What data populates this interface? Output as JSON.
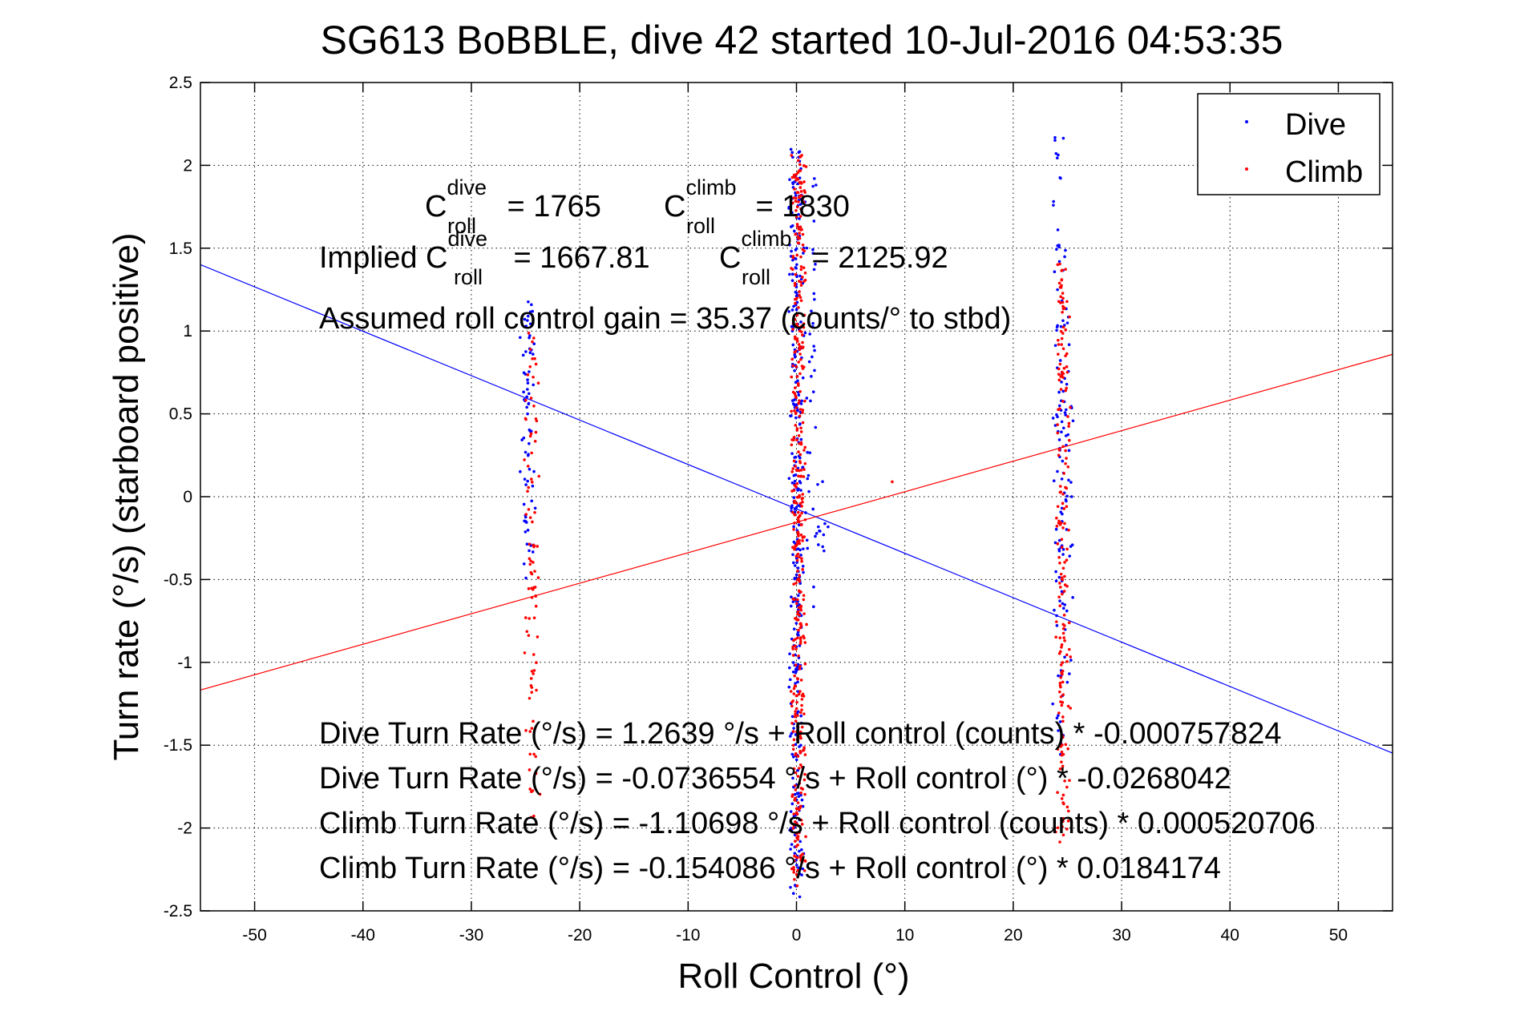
{
  "chart_data": {
    "type": "scatter",
    "title": "SG613 BoBBLE, dive 42 started 10-Jul-2016 04:53:35",
    "xlabel": "Roll Control (°)",
    "ylabel": "Turn rate (°/s)  (starboard positive)",
    "xlim": [
      -55,
      55
    ],
    "ylim": [
      -2.5,
      2.5
    ],
    "xticks": [
      -50,
      -40,
      -30,
      -20,
      -10,
      0,
      10,
      20,
      30,
      40,
      50
    ],
    "yticks": [
      -2.5,
      -2,
      -1.5,
      -1,
      -0.5,
      0,
      0.5,
      1,
      1.5,
      2,
      2.5
    ],
    "grid": true,
    "legend": {
      "placement": "top-right",
      "entries": [
        {
          "label": "Dive",
          "color": "#0000ff"
        },
        {
          "label": "Climb",
          "color": "#ff0000"
        }
      ]
    },
    "series": [
      {
        "name": "Dive",
        "color": "#0000ff",
        "marker": "point",
        "clusters": [
          {
            "x": -24.8,
            "y_min": -0.5,
            "y_max": 1.18,
            "count": 70
          },
          {
            "x": 0.0,
            "y_min": -2.42,
            "y_max": 2.1,
            "count": 320
          },
          {
            "x": 1.4,
            "y_min": -1.0,
            "y_max": 2.0,
            "count": 40
          },
          {
            "x": 2.3,
            "y_min": -0.35,
            "y_max": 0.1,
            "count": 12
          },
          {
            "x": 24.2,
            "y_min": -1.6,
            "y_max": 2.3,
            "count": 80
          },
          {
            "x": 24.9,
            "y_min": -1.2,
            "y_max": 1.3,
            "count": 50
          }
        ]
      },
      {
        "name": "Climb",
        "color": "#ff0000",
        "marker": "point",
        "clusters": [
          {
            "x": -24.4,
            "y_min": -1.95,
            "y_max": 1.0,
            "count": 90
          },
          {
            "x": 0.2,
            "y_min": -2.35,
            "y_max": 2.1,
            "count": 420
          },
          {
            "x": 24.6,
            "y_min": -2.1,
            "y_max": 1.48,
            "count": 180
          },
          {
            "x": 9.0,
            "y_min": 0.09,
            "y_max": 0.09,
            "count": 1
          }
        ]
      }
    ],
    "fit_lines": [
      {
        "series": "Dive",
        "color": "#0000ff",
        "intercept": -0.0736554,
        "slope": -0.0268042
      },
      {
        "series": "Climb",
        "color": "#ff0000",
        "intercept": -0.154086,
        "slope": 0.0184174
      }
    ],
    "annotations": {
      "c_dive": {
        "main": "C",
        "sup": "dive",
        "sub": "roll",
        "tail": " = 1765"
      },
      "c_climb": {
        "main": "C",
        "sup": "climb",
        "sub": "roll",
        "tail": " = 1830"
      },
      "implied_prefix": "Implied C",
      "implied_dive_sup": "dive",
      "implied_dive_sub": "roll",
      "implied_dive_tail": " = 1667.81",
      "implied_climb_main": "C",
      "implied_climb_sup": "climb",
      "implied_climb_sub": "roll",
      "implied_climb_tail": " = 2125.92",
      "gain": "Assumed roll control gain = 35.37 (counts/° to stbd)",
      "equations": [
        "Dive Turn Rate (°/s) = 1.2639 °/s + Roll control (counts) * -0.000757824",
        "Dive Turn Rate (°/s) = -0.0736554 °/s + Roll control (°) * -0.0268042",
        "Climb Turn Rate (°/s) = -1.10698 °/s + Roll control (counts) * 0.000520706",
        "Climb Turn Rate (°/s) = -0.154086 °/s + Roll control (°) * 0.0184174"
      ]
    }
  }
}
